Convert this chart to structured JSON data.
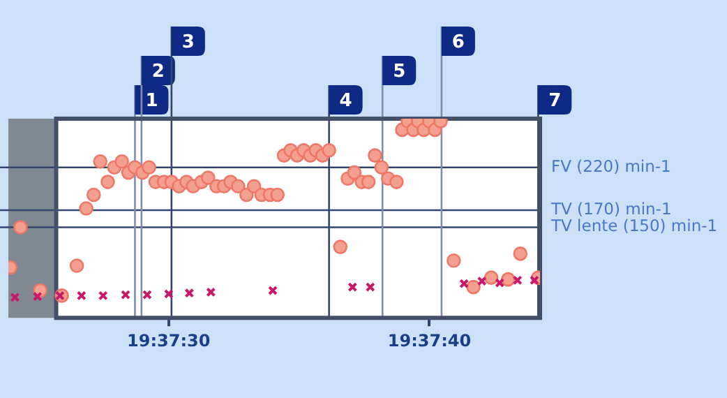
{
  "chart_data": {
    "type": "scatter",
    "xlim": [
      19.62329,
      19.62896
    ],
    "ylim": [
      44,
      277
    ],
    "xticks": [
      {
        "value": 19.625,
        "label": "19:37:30"
      },
      {
        "value": 19.62778,
        "label": "19:37:40"
      }
    ],
    "tick_labels": "x",
    "series": [
      {
        "marker": "circle",
        "color": "#f4a090",
        "x": [
          19.62331,
          19.62342,
          19.62363,
          19.62386,
          19.62402,
          19.62412,
          19.6242,
          19.62427,
          19.62435,
          19.62442,
          19.6245,
          19.62457,
          19.62464,
          19.62472,
          19.62479,
          19.62486,
          19.62495,
          19.62503,
          19.62511,
          19.62519,
          19.62526,
          19.62535,
          19.62542,
          19.62551,
          19.62559,
          19.62566,
          19.62574,
          19.62583,
          19.62591,
          19.62599,
          19.62608,
          19.62616,
          19.62623,
          19.6263,
          19.62637,
          19.62644,
          19.62651,
          19.62657,
          19.62664,
          19.62671,
          19.62683,
          19.62691,
          19.62698,
          19.62706,
          19.62713,
          19.6272,
          19.62727,
          19.62734,
          19.62743,
          19.62749,
          19.62755,
          19.62761,
          19.62766,
          19.62772,
          19.62778,
          19.62784,
          19.6279,
          19.62804,
          19.62825,
          19.62844,
          19.62862,
          19.62875,
          19.62894
        ],
        "values": [
          103,
          150,
          76,
          70,
          105,
          172,
          188,
          227,
          203,
          220,
          227,
          214,
          220,
          214,
          220,
          203,
          203,
          203,
          198,
          203,
          198,
          203,
          208,
          198,
          198,
          203,
          198,
          188,
          198,
          188,
          188,
          188,
          234,
          240,
          234,
          240,
          234,
          240,
          234,
          240,
          127,
          207,
          214,
          203,
          203,
          234,
          220,
          207,
          203,
          264,
          274,
          264,
          274,
          264,
          274,
          264,
          274,
          111,
          80,
          91,
          89,
          119,
          91
        ]
      },
      {
        "marker": "cross",
        "color": "#c8186a",
        "x": [
          19.62336,
          19.6236,
          19.62384,
          19.62407,
          19.6243,
          19.62454,
          19.62477,
          19.625,
          19.62522,
          19.62545,
          19.62611,
          19.62696,
          19.62715,
          19.62815,
          19.62834,
          19.62853,
          19.62872,
          19.6289
        ],
        "values": [
          68,
          69,
          70,
          70,
          70,
          71,
          71,
          72,
          73,
          74,
          76,
          80,
          80,
          84,
          87,
          85,
          88,
          88
        ]
      }
    ],
    "ref_lines": [
      {
        "axis": "y",
        "value": 220,
        "label": "FV (220) min-1",
        "color": "#34466e"
      },
      {
        "axis": "y",
        "value": 170,
        "label": "TV (170) min-1",
        "color": "#34466e"
      },
      {
        "axis": "y",
        "value": 150,
        "label": "TV lente (150) min-1",
        "color": "#34466e"
      },
      {
        "axis": "x",
        "value": 19.62464,
        "color": "#7d8fa8"
      },
      {
        "axis": "x",
        "value": 19.62471,
        "color": "#7d8fa8"
      },
      {
        "axis": "x",
        "value": 19.62503,
        "color": "#34466e"
      },
      {
        "axis": "x",
        "value": 19.62671,
        "color": "#34466e"
      },
      {
        "axis": "x",
        "value": 19.62728,
        "color": "#7d8fa8"
      },
      {
        "axis": "x",
        "value": 19.62791,
        "color": "#7d8fa8"
      },
      {
        "axis": "x",
        "value": 19.62894,
        "color": "#34466e"
      }
    ],
    "annotations": [
      "1",
      "2",
      "3",
      "4",
      "5",
      "6",
      "7"
    ],
    "bands": [
      {
        "axis": "x",
        "from": 19.62329,
        "to": 19.6238,
        "color": "#808892"
      }
    ]
  }
}
